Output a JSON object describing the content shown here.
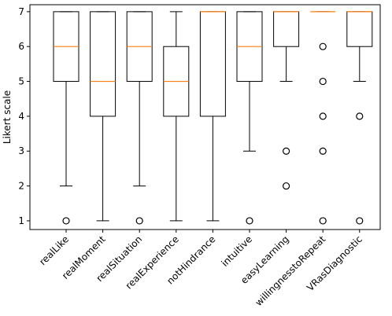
{
  "chart_data": {
    "type": "boxplot",
    "title": "",
    "xlabel": "",
    "ylabel": "Likert scale",
    "ylim": [
      0.75,
      7.2
    ],
    "yticks": [
      1,
      2,
      3,
      4,
      5,
      6,
      7
    ],
    "grid": false,
    "categories": [
      "realLike",
      "realMoment",
      "realSituation",
      "realExperience",
      "notHindrance",
      "intuitive",
      "easyLearning",
      "willingnesstoRepeat",
      "VRasDiagnostic"
    ],
    "boxes": [
      {
        "whisker_low": 2,
        "q1": 5,
        "median": 6,
        "q3": 7,
        "whisker_high": 7,
        "outliers": [
          1
        ]
      },
      {
        "whisker_low": 1,
        "q1": 4,
        "median": 5,
        "q3": 7,
        "whisker_high": 7,
        "outliers": []
      },
      {
        "whisker_low": 2,
        "q1": 5,
        "median": 6,
        "q3": 7,
        "whisker_high": 7,
        "outliers": [
          1
        ]
      },
      {
        "whisker_low": 1,
        "q1": 4,
        "median": 5,
        "q3": 6,
        "whisker_high": 7,
        "outliers": []
      },
      {
        "whisker_low": 1,
        "q1": 4,
        "median": 7,
        "q3": 7,
        "whisker_high": 7,
        "outliers": []
      },
      {
        "whisker_low": 3,
        "q1": 5,
        "median": 6,
        "q3": 7,
        "whisker_high": 7,
        "outliers": [
          1
        ]
      },
      {
        "whisker_low": 5,
        "q1": 6,
        "median": 7,
        "q3": 7,
        "whisker_high": 7,
        "outliers": [
          2,
          3
        ]
      },
      {
        "whisker_low": 7,
        "q1": 7,
        "median": 7,
        "q3": 7,
        "whisker_high": 7,
        "outliers": [
          1,
          3,
          4,
          5,
          6
        ]
      },
      {
        "whisker_low": 5,
        "q1": 6,
        "median": 7,
        "q3": 7,
        "whisker_high": 7,
        "outliers": [
          1,
          4
        ]
      }
    ],
    "colors": {
      "box": "#000000",
      "median": "#ff7f0e",
      "outlier": "#000000"
    }
  }
}
